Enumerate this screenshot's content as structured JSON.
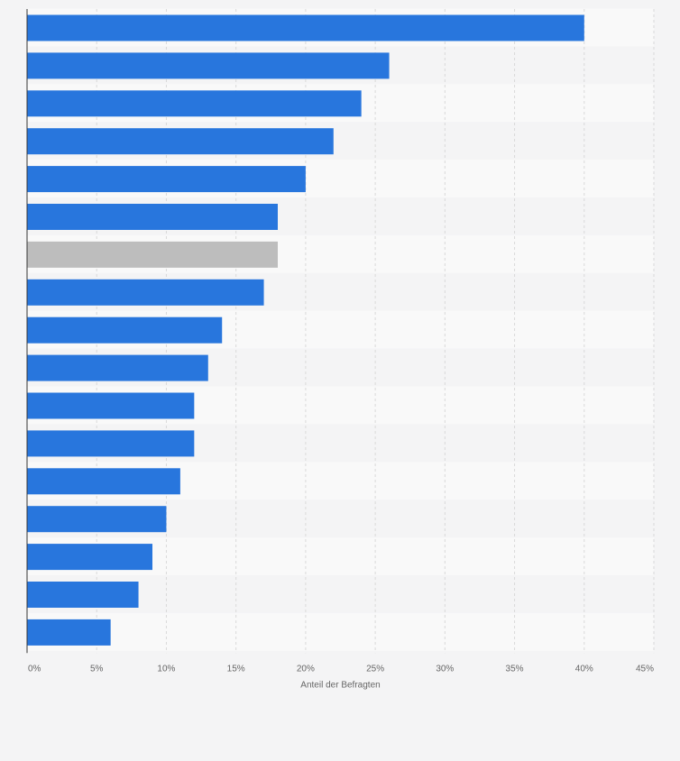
{
  "chart_data": {
    "type": "bar",
    "orientation": "horizontal",
    "xlabel": "Anteil der Befragten",
    "xlim": [
      0,
      45
    ],
    "x_ticks": [
      "0%",
      "5%",
      "10%",
      "15%",
      "20%",
      "25%",
      "30%",
      "35%",
      "40%",
      "45%"
    ],
    "values": [
      40,
      26,
      24,
      22,
      20,
      18,
      18,
      17,
      14,
      13,
      12,
      12,
      11,
      10,
      9,
      8,
      6
    ],
    "highlight_index": 6,
    "grid": true,
    "colors": {
      "bar": "#2876dd",
      "highlight": "#bdbdbd",
      "band_light": "#f9f9f9",
      "band_dark": "#f4f4f5",
      "grid": "#d9d9d9",
      "axis": "#333333"
    }
  }
}
